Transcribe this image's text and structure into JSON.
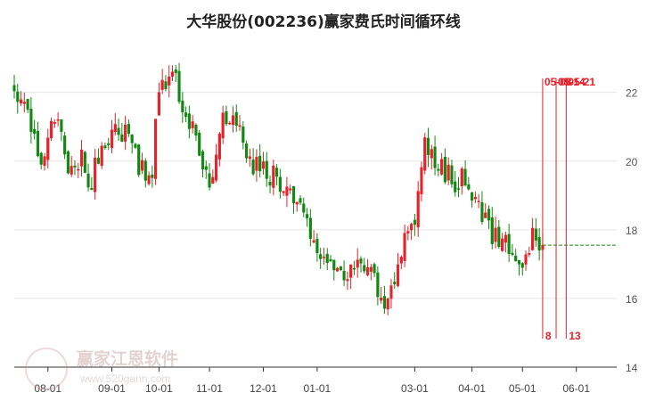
{
  "title": "大华股份(002236)赢家费氏时间循环线",
  "watermark": {
    "name": "赢家江恩软件",
    "url": "www.520gann.com"
  },
  "colors": {
    "up": "#e8202a",
    "down": "#118811",
    "cycle_line": "#e8202a",
    "current_price_line": "#118811",
    "grid": "#e6e6e6"
  },
  "chart_data": {
    "type": "candlestick",
    "title": "大华股份(002236)赢家费氏时间循环线",
    "ylim": [
      14,
      23.6
    ],
    "y_ticks": [
      14,
      16,
      18,
      20,
      22
    ],
    "y_axis_position": "right",
    "grid": true,
    "x_ticks": [
      {
        "label": "08-01",
        "index": 10
      },
      {
        "label": "09-01",
        "index": 29
      },
      {
        "label": "10-01",
        "index": 43
      },
      {
        "label": "11-01",
        "index": 58
      },
      {
        "label": "12-01",
        "index": 74
      },
      {
        "label": "01-01",
        "index": 90
      },
      {
        "label": "03-01",
        "index": 119
      },
      {
        "label": "04-01",
        "index": 136
      },
      {
        "label": "05-01",
        "index": 151
      },
      {
        "label": "06-01",
        "index": 167
      }
    ],
    "x_index_range": [
      0,
      179
    ],
    "current_price": 17.55,
    "cycle_lines": [
      {
        "index": 157,
        "top_label": "05-08",
        "bottom_label": "8"
      },
      {
        "index": 161,
        "top_label": "05-14",
        "bottom_label": ""
      },
      {
        "index": 164,
        "top_label": "05-21",
        "bottom_label": "13"
      }
    ],
    "path_anchors": [
      [
        0,
        22.0
      ],
      [
        4,
        21.6
      ],
      [
        8,
        19.8
      ],
      [
        12,
        21.4
      ],
      [
        16,
        19.9
      ],
      [
        20,
        20.0
      ],
      [
        22,
        19.2
      ],
      [
        26,
        20.4
      ],
      [
        30,
        21.2
      ],
      [
        34,
        20.6
      ],
      [
        38,
        19.7
      ],
      [
        41,
        19.8
      ],
      [
        43,
        22.2
      ],
      [
        47,
        22.6
      ],
      [
        52,
        21.2
      ],
      [
        56,
        19.7
      ],
      [
        58,
        19.4
      ],
      [
        62,
        21.2
      ],
      [
        66,
        21.0
      ],
      [
        70,
        20.0
      ],
      [
        74,
        19.7
      ],
      [
        80,
        19.4
      ],
      [
        86,
        18.4
      ],
      [
        90,
        17.6
      ],
      [
        94,
        17.2
      ],
      [
        98,
        16.8
      ],
      [
        102,
        17.0
      ],
      [
        106,
        16.8
      ],
      [
        110,
        15.6
      ],
      [
        113,
        16.6
      ],
      [
        116,
        18.0
      ],
      [
        119,
        18.5
      ],
      [
        122,
        20.6
      ],
      [
        126,
        20.0
      ],
      [
        130,
        19.4
      ],
      [
        134,
        19.6
      ],
      [
        137,
        19.0
      ],
      [
        141,
        18.0
      ],
      [
        145,
        17.6
      ],
      [
        148,
        17.3
      ],
      [
        151,
        16.9
      ],
      [
        154,
        17.8
      ],
      [
        157,
        17.55
      ]
    ]
  }
}
